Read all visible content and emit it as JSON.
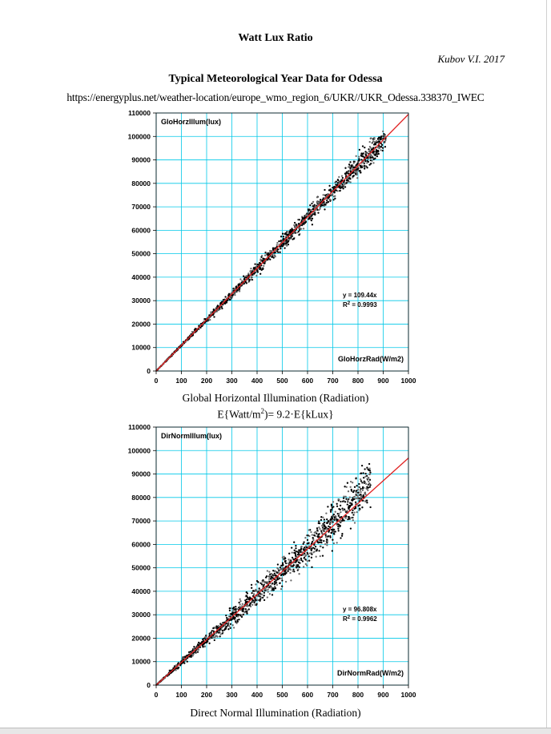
{
  "document": {
    "title": "Watt Lux Ratio",
    "author": "Kubov V.I. 2017",
    "subtitle": "Typical Meteorological Year Data for Odessa",
    "url": "https://energyplus.net/weather-location/europe_wmo_region_6/UKR//UKR_Odessa.338370_IWEC"
  },
  "captions": {
    "chart1_line1": "Global Horizontal Illumination (Radiation)",
    "chart1_formula_prefix": "E{Watt/m",
    "chart1_formula_sup": "2",
    "chart1_formula_suffix": ")= 9.2·E{kLux}",
    "chart2_line1": "Direct Normal Illumination (Radiation)"
  },
  "colors": {
    "gridline": "#00c8e8",
    "trendline": "#e02020",
    "points": "#000000"
  },
  "chart_data": [
    {
      "type": "scatter",
      "ylabel": "GloHorzIllum(lux)",
      "xlabel": "GloHorzRad(W/m2)",
      "xlim": [
        0,
        1000
      ],
      "ylim": [
        0,
        110000
      ],
      "xticks": [
        "0",
        "100",
        "200",
        "300",
        "400",
        "500",
        "600",
        "700",
        "800",
        "900",
        "1000"
      ],
      "yticks": [
        "0",
        "10000",
        "20000",
        "30000",
        "40000",
        "50000",
        "60000",
        "70000",
        "80000",
        "90000",
        "100000",
        "110000"
      ],
      "grid": true,
      "trendline": {
        "slope": 109.44,
        "equation": "y = 109.44x",
        "r2_prefix": "R",
        "r2_sup": "2",
        "r2_suffix": " = 0.9993"
      },
      "points_x_max": 910,
      "scatter_spread": 0.025
    },
    {
      "type": "scatter",
      "ylabel": "DirNormIllum(lux)",
      "xlabel": "DirNormRad(W/m2)",
      "xlim": [
        0,
        1000
      ],
      "ylim": [
        0,
        110000
      ],
      "xticks": [
        "0",
        "100",
        "200",
        "300",
        "400",
        "500",
        "600",
        "700",
        "800",
        "900",
        "1000"
      ],
      "yticks": [
        "0",
        "10000",
        "20000",
        "30000",
        "40000",
        "50000",
        "60000",
        "70000",
        "80000",
        "90000",
        "100000",
        "110000"
      ],
      "grid": true,
      "trendline": {
        "slope": 96.808,
        "equation": "y = 96.808x",
        "r2_prefix": "R",
        "r2_sup": "2",
        "r2_suffix": " = 0.9962"
      },
      "points_x_max": 850,
      "scatter_spread": 0.06
    }
  ]
}
